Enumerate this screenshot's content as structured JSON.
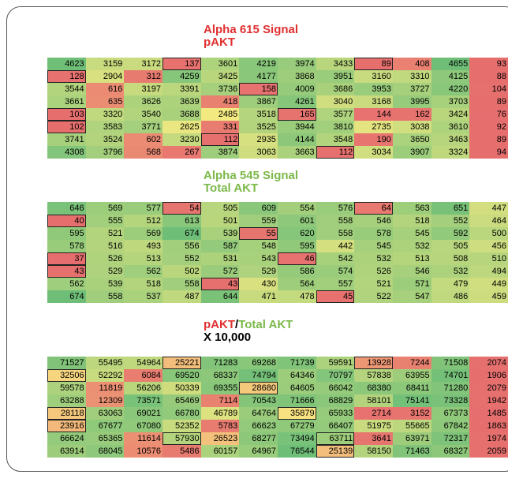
{
  "tables": [
    {
      "title": [
        "Alpha 615 Signal",
        "pAKT"
      ],
      "title_color": "#e03030",
      "rows": [
        [
          4623,
          3159,
          3172,
          137,
          3601,
          4219,
          3974,
          3433,
          89,
          408,
          4655,
          93
        ],
        [
          128,
          2904,
          312,
          4259,
          3425,
          4177,
          3868,
          3951,
          3160,
          3310,
          4125,
          88
        ],
        [
          3544,
          616,
          3197,
          3391,
          3736,
          158,
          4009,
          3686,
          3953,
          3727,
          4220,
          104
        ],
        [
          3661,
          635,
          3626,
          3639,
          418,
          3867,
          4261,
          3040,
          3168,
          3995,
          3703,
          89
        ],
        [
          103,
          3320,
          3540,
          3688,
          2485,
          3518,
          165,
          3577,
          144,
          162,
          3424,
          76
        ],
        [
          102,
          3583,
          3771,
          2625,
          331,
          3525,
          3944,
          3810,
          2735,
          3038,
          3610,
          92
        ],
        [
          3741,
          3524,
          602,
          3230,
          112,
          2935,
          4144,
          3548,
          190,
          3650,
          3463,
          89
        ],
        [
          4308,
          3796,
          568,
          267,
          3874,
          3063,
          3663,
          112,
          3034,
          3907,
          3324,
          94
        ]
      ],
      "outlined": [
        [
          0,
          3
        ],
        [
          0,
          8
        ],
        [
          1,
          0
        ],
        [
          2,
          5
        ],
        [
          4,
          0
        ],
        [
          4,
          6
        ],
        [
          5,
          0
        ],
        [
          6,
          4
        ],
        [
          7,
          7
        ]
      ]
    },
    {
      "title": [
        "Alpha 545 Signal",
        "Total AKT"
      ],
      "title_color": "#7cb84a",
      "rows": [
        [
          646,
          569,
          577,
          54,
          505,
          609,
          554,
          576,
          64,
          563,
          651,
          447
        ],
        [
          40,
          555,
          512,
          613,
          501,
          559,
          601,
          558,
          546,
          518,
          552,
          464
        ],
        [
          595,
          521,
          569,
          674,
          539,
          55,
          620,
          558,
          578,
          545,
          592,
          500
        ],
        [
          578,
          516,
          493,
          556,
          587,
          548,
          595,
          442,
          545,
          532,
          505,
          456
        ],
        [
          37,
          526,
          513,
          552,
          531,
          543,
          46,
          542,
          532,
          513,
          508,
          510
        ],
        [
          43,
          529,
          562,
          502,
          572,
          529,
          586,
          574,
          526,
          546,
          532,
          494
        ],
        [
          562,
          539,
          518,
          558,
          43,
          430,
          564,
          557,
          521,
          571,
          479,
          449
        ],
        [
          674,
          558,
          537,
          487,
          644,
          471,
          478,
          45,
          522,
          547,
          486,
          459
        ]
      ],
      "outlined": [
        [
          0,
          3
        ],
        [
          0,
          8
        ],
        [
          1,
          0
        ],
        [
          2,
          5
        ],
        [
          4,
          0
        ],
        [
          4,
          6
        ],
        [
          5,
          0
        ],
        [
          6,
          4
        ],
        [
          7,
          7
        ]
      ]
    },
    {
      "title_parts": [
        {
          "text": "pAKT",
          "color": "#e03030"
        },
        {
          "text": "/",
          "color": "#000000"
        },
        {
          "text": "Total AKT",
          "color": "#7cb84a"
        }
      ],
      "subtitle": "X 10,000",
      "rows": [
        [
          71527,
          55495,
          54964,
          25221,
          71283,
          69268,
          71739,
          59591,
          13928,
          7244,
          71508,
          2074
        ],
        [
          32506,
          52292,
          6084,
          69520,
          68337,
          74794,
          64346,
          70797,
          57838,
          63955,
          74701,
          1906
        ],
        [
          59578,
          11819,
          56206,
          50339,
          69355,
          28680,
          64605,
          66042,
          68380,
          68411,
          71280,
          2079
        ],
        [
          63288,
          12309,
          73571,
          65469,
          7114,
          70543,
          71666,
          68829,
          58101,
          75141,
          73328,
          1942
        ],
        [
          28118,
          63063,
          69021,
          66780,
          46789,
          64764,
          35879,
          65933,
          2714,
          3152,
          67373,
          1485
        ],
        [
          23916,
          67677,
          67080,
          52352,
          5783,
          66623,
          67279,
          66407,
          51975,
          55665,
          67842,
          1863
        ],
        [
          66624,
          65365,
          11614,
          57930,
          26523,
          68277,
          73494,
          63711,
          3641,
          63971,
          72317,
          1974
        ],
        [
          63914,
          68045,
          10576,
          5486,
          60157,
          64967,
          76544,
          25139,
          58150,
          71463,
          68327,
          2059
        ]
      ],
      "outlined": [
        [
          0,
          3
        ],
        [
          0,
          8
        ],
        [
          1,
          0
        ],
        [
          2,
          5
        ],
        [
          4,
          0
        ],
        [
          4,
          6
        ],
        [
          5,
          0
        ],
        [
          6,
          3
        ],
        [
          6,
          7
        ],
        [
          7,
          7
        ]
      ]
    }
  ]
}
